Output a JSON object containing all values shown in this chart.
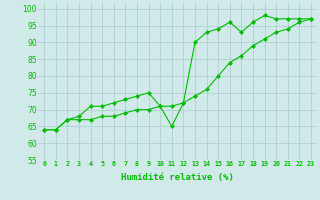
{
  "x": [
    0,
    1,
    2,
    3,
    4,
    5,
    6,
    7,
    8,
    9,
    10,
    11,
    12,
    13,
    14,
    15,
    16,
    17,
    18,
    19,
    20,
    21,
    22,
    23
  ],
  "line1": [
    64,
    64,
    67,
    68,
    71,
    71,
    72,
    73,
    74,
    75,
    71,
    65,
    72,
    90,
    93,
    94,
    96,
    93,
    96,
    98,
    97,
    97,
    97,
    97
  ],
  "line2": [
    64,
    64,
    67,
    67,
    67,
    68,
    68,
    69,
    70,
    70,
    71,
    71,
    72,
    74,
    76,
    80,
    84,
    86,
    89,
    91,
    93,
    94,
    96,
    97
  ],
  "xlabel": "Humidité relative (%)",
  "ylim": [
    55,
    102
  ],
  "xlim": [
    -0.5,
    23.5
  ],
  "yticks": [
    55,
    60,
    65,
    70,
    75,
    80,
    85,
    90,
    95,
    100
  ],
  "xticks": [
    0,
    1,
    2,
    3,
    4,
    5,
    6,
    7,
    8,
    9,
    10,
    11,
    12,
    13,
    14,
    15,
    16,
    17,
    18,
    19,
    20,
    21,
    22,
    23
  ],
  "line_color": "#00bb00",
  "bg_color": "#d0eaea",
  "grid_color": "#aacccc",
  "marker": "D",
  "marker_size": 2,
  "linewidth": 0.8,
  "xlabel_fontsize": 6.5,
  "xtick_fontsize": 4.8,
  "ytick_fontsize": 5.5
}
